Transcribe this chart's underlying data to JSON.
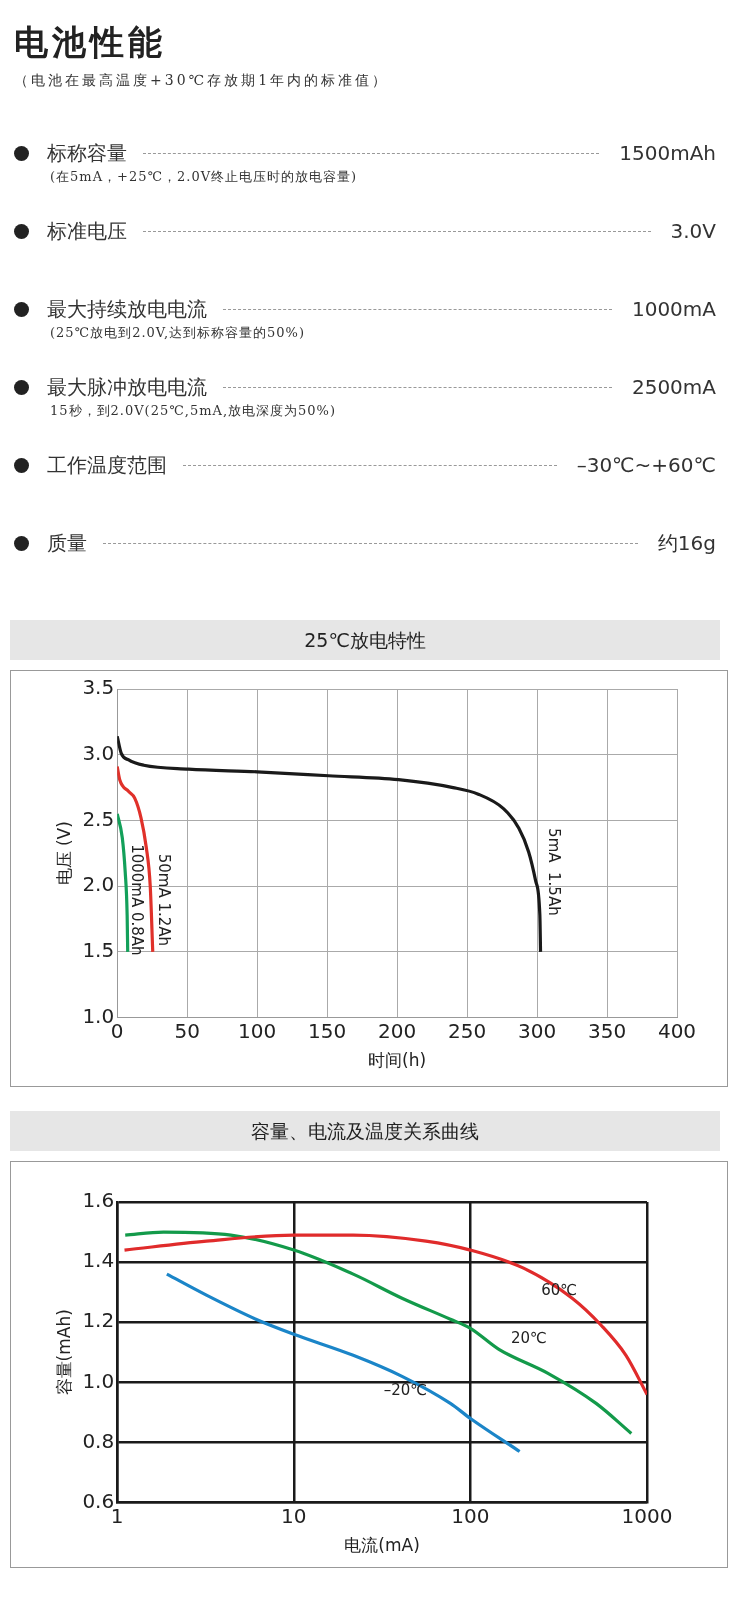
{
  "chart_data": [
    {
      "type": "other",
      "title": "电池性能",
      "subtitle": "（电池在最高温度+30℃存放期1年内的标准值）",
      "categories": [
        "标称容量",
        "标准电压",
        "最大持续放电电流",
        "最大脉冲放电电流",
        "工作温度范围",
        "质量"
      ],
      "value_labels": [
        "1500mAh",
        "3.0V",
        "1000mA",
        "2500mA",
        "–30℃~+60℃",
        "约16g"
      ],
      "annotations": [
        "(在5mA，+25℃，2.0V终止电压时的放电容量)",
        null,
        "(25℃放电到2.0V,达到标称容量的50%)",
        "15秒，到2.0V(25℃,5mA,放电深度为50%)",
        null,
        null
      ]
    },
    {
      "type": "line",
      "title": "25℃放电特性",
      "xlabel": "时间(h)",
      "ylabel": "电压 (V)",
      "xlim": [
        0,
        400
      ],
      "xticks": [
        0,
        50,
        100,
        150,
        200,
        250,
        300,
        350,
        400
      ],
      "ylim": [
        1.0,
        3.5
      ],
      "yticks": [
        {
          "value": 1.0,
          "label": "1.0"
        },
        {
          "value": 1.5,
          "label": "1.5"
        },
        {
          "value": 2.0,
          "label": "2.0"
        },
        {
          "value": 2.5,
          "label": "2.5"
        },
        {
          "value": 3.0,
          "label": "3.0"
        },
        {
          "value": 3.5,
          "label": "3.5"
        }
      ],
      "grid": true,
      "legend": false,
      "series": [
        {
          "name": "5mA  1.5Ah",
          "color": "#1a1a1a",
          "x": [
            0,
            2.9,
            8.2,
            19,
            51,
            100,
            151,
            201,
            240,
            258,
            276,
            287,
            294,
            299,
            302,
            302.5
          ],
          "values": [
            3.14,
            3.01,
            2.96,
            2.92,
            2.89,
            2.87,
            2.84,
            2.81,
            2.75,
            2.7,
            2.59,
            2.44,
            2.26,
            2.04,
            1.78,
            1.5
          ]
        },
        {
          "name": "50mA 1.2Ah",
          "color": "#e0312a",
          "x": [
            0,
            1.8,
            8.2,
            12.5,
            17,
            20.7,
            23.6,
            25.4
          ],
          "values": [
            2.91,
            2.81,
            2.72,
            2.67,
            2.52,
            2.3,
            2.0,
            1.5
          ]
        },
        {
          "name": "1000mA 0.8Ah",
          "color": "#13a05a",
          "x": [
            0,
            3.6,
            5.7,
            7.1,
            7.5
          ],
          "values": [
            2.55,
            2.37,
            2.11,
            1.78,
            1.5
          ]
        }
      ]
    },
    {
      "type": "line",
      "title": "容量、电流及温度关系曲线",
      "xlabel": "电流(mA)",
      "ylabel": "容量(mAh)",
      "log": "x",
      "xlim": [
        1,
        1000
      ],
      "xticks": [
        1,
        10,
        100,
        1000
      ],
      "ylim": [
        0.6,
        1.6
      ],
      "yticks": [
        {
          "value": 0.6,
          "label": "0.6"
        },
        {
          "value": 0.8,
          "label": "0.8"
        },
        {
          "value": 1.0,
          "label": "1.0"
        },
        {
          "value": 1.2,
          "label": "1.2"
        },
        {
          "value": 1.4,
          "label": "1.4"
        },
        {
          "value": 1.6,
          "label": "1.6"
        }
      ],
      "grid": true,
      "legend": false,
      "series": [
        {
          "name": "60℃",
          "color": "#e02b2b",
          "x": [
            1.1,
            3.2,
            10,
            21.7,
            56,
            100,
            200,
            377,
            550,
            760,
            1000
          ],
          "values": [
            1.44,
            1.47,
            1.49,
            1.49,
            1.47,
            1.44,
            1.38,
            1.28,
            1.19,
            1.09,
            0.96
          ]
        },
        {
          "name": "20℃",
          "color": "#139a4a",
          "x": [
            1.11,
            1.83,
            4.4,
            10,
            21.7,
            41,
            77,
            100,
            145,
            275,
            515,
            815
          ],
          "values": [
            1.49,
            1.5,
            1.49,
            1.44,
            1.36,
            1.28,
            1.21,
            1.18,
            1.11,
            1.03,
            0.93,
            0.83
          ]
        },
        {
          "name": "–20℃",
          "color": "#1b85c8",
          "x": [
            1.91,
            3.2,
            6.1,
            10,
            21.7,
            41,
            77,
            100,
            190
          ],
          "values": [
            1.36,
            1.29,
            1.21,
            1.16,
            1.09,
            1.02,
            0.93,
            0.88,
            0.77
          ]
        }
      ]
    }
  ]
}
